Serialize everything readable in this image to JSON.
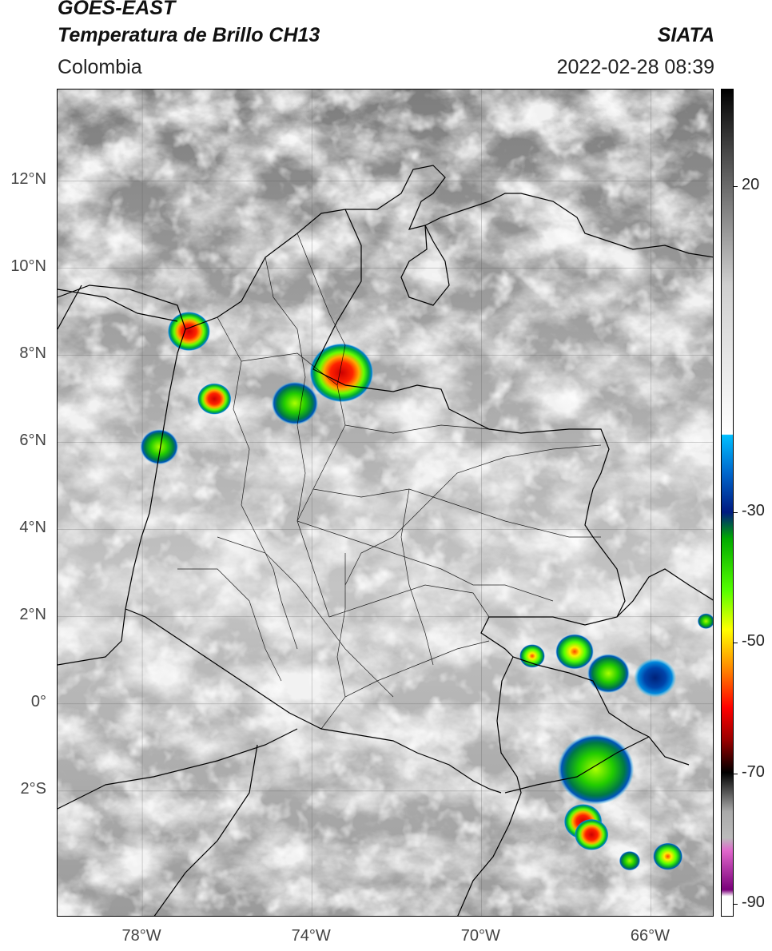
{
  "header": {
    "satellite": "GOES-EAST",
    "product": "Temperatura de Brillo CH13",
    "region": "Colombia",
    "agency": "SIATA",
    "datetime": "2022-02-28 08:39"
  },
  "map": {
    "lon_range": [
      -80,
      -64.5
    ],
    "lat_range": [
      -4.9,
      14.1
    ],
    "lat_ticks": [
      {
        "lat": 12,
        "label": "12°N"
      },
      {
        "lat": 10,
        "label": "10°N"
      },
      {
        "lat": 8,
        "label": "8°N"
      },
      {
        "lat": 6,
        "label": "6°N"
      },
      {
        "lat": 4,
        "label": "4°N"
      },
      {
        "lat": 2,
        "label": "2°N"
      },
      {
        "lat": 0,
        "label": "0°"
      },
      {
        "lat": -2,
        "label": "2°S"
      }
    ],
    "lon_ticks": [
      {
        "lon": -78,
        "label": "78°W"
      },
      {
        "lon": -74,
        "label": "74°W"
      },
      {
        "lon": -70,
        "label": "70°W"
      },
      {
        "lon": -66,
        "label": "66°W"
      }
    ],
    "storm_cells": [
      {
        "lon": -76.9,
        "lat": 8.55,
        "r": 0.5,
        "core": "red"
      },
      {
        "lon": -76.3,
        "lat": 7.0,
        "r": 0.4,
        "core": "red"
      },
      {
        "lon": -73.3,
        "lat": 7.6,
        "r": 0.75,
        "core": "red"
      },
      {
        "lon": -74.4,
        "lat": 6.9,
        "r": 0.55,
        "core": "green"
      },
      {
        "lon": -77.6,
        "lat": 5.9,
        "r": 0.45,
        "core": "green"
      },
      {
        "lon": -67.8,
        "lat": 1.2,
        "r": 0.45,
        "core": "yellow"
      },
      {
        "lon": -68.8,
        "lat": 1.1,
        "r": 0.3,
        "core": "yellow"
      },
      {
        "lon": -67.0,
        "lat": 0.7,
        "r": 0.5,
        "core": "green"
      },
      {
        "lon": -65.9,
        "lat": 0.6,
        "r": 0.5,
        "core": "blue"
      },
      {
        "lon": -67.3,
        "lat": -1.5,
        "r": 0.9,
        "core": "green"
      },
      {
        "lon": -67.6,
        "lat": -2.7,
        "r": 0.45,
        "core": "red"
      },
      {
        "lon": -67.4,
        "lat": -3.0,
        "r": 0.4,
        "core": "red"
      },
      {
        "lon": -65.6,
        "lat": -3.5,
        "r": 0.35,
        "core": "yellow"
      },
      {
        "lon": -66.5,
        "lat": -3.6,
        "r": 0.25,
        "core": "green"
      },
      {
        "lon": -64.7,
        "lat": 1.9,
        "r": 0.2,
        "core": "green"
      }
    ]
  },
  "colorbar": {
    "range": [
      -92,
      35
    ],
    "ticks": [
      {
        "value": 20,
        "label": "20"
      },
      {
        "value": -30,
        "label": "-30"
      },
      {
        "value": -50,
        "label": "-50"
      },
      {
        "value": -70,
        "label": "-70"
      },
      {
        "value": -90,
        "label": "-90"
      }
    ],
    "stops": [
      {
        "value": 35,
        "color": "#000000"
      },
      {
        "value": 25,
        "color": "#4a4a4a"
      },
      {
        "value": 15,
        "color": "#8c8c8c"
      },
      {
        "value": 5,
        "color": "#cfcfcf"
      },
      {
        "value": -18,
        "color": "#ffffff"
      },
      {
        "value": -18.1,
        "color": "#00bfff"
      },
      {
        "value": -24,
        "color": "#0066cc"
      },
      {
        "value": -30,
        "color": "#001a80"
      },
      {
        "value": -34,
        "color": "#00aa00"
      },
      {
        "value": -42,
        "color": "#55ff00"
      },
      {
        "value": -48,
        "color": "#ffff00"
      },
      {
        "value": -54,
        "color": "#ff8800"
      },
      {
        "value": -60,
        "color": "#ff0000"
      },
      {
        "value": -65,
        "color": "#990000"
      },
      {
        "value": -70,
        "color": "#000000"
      },
      {
        "value": -76,
        "color": "#aaaaaa"
      },
      {
        "value": -80,
        "color": "#bbbbbb"
      },
      {
        "value": -82,
        "color": "#e066cc"
      },
      {
        "value": -88,
        "color": "#7a007a"
      },
      {
        "value": -89,
        "color": "#ffffff"
      },
      {
        "value": -92,
        "color": "#ffffff"
      }
    ]
  }
}
